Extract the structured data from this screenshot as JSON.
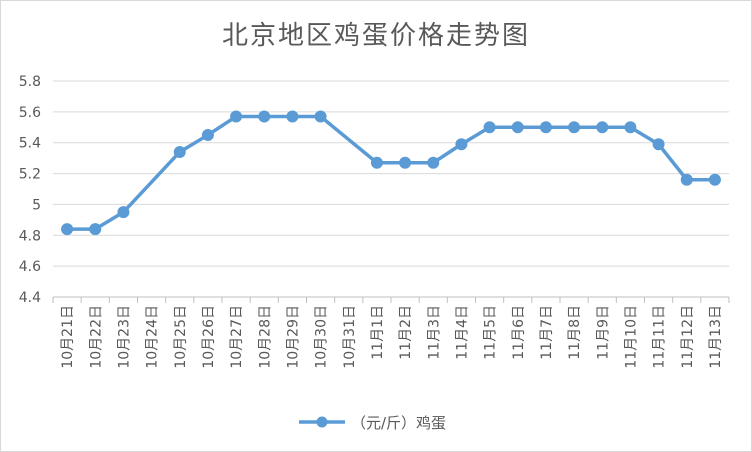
{
  "chart_data": {
    "type": "line",
    "title": "北京地区鸡蛋价格走势图",
    "xlabel": "",
    "ylabel": "",
    "ylim": [
      4.4,
      5.8
    ],
    "yticks": [
      "4.4",
      "4.6",
      "4.8",
      "5",
      "5.2",
      "5.4",
      "5.6",
      "5.8"
    ],
    "categories": [
      "10月21日",
      "10月22日",
      "10月23日",
      "10月24日",
      "10月25日",
      "10月26日",
      "10月27日",
      "10月28日",
      "10月29日",
      "10月30日",
      "10月31日",
      "11月1日",
      "11月2日",
      "11月3日",
      "11月4日",
      "11月5日",
      "11月6日",
      "11月7日",
      "11月8日",
      "11月9日",
      "11月10日",
      "11月11日",
      "11月12日",
      "11月13日"
    ],
    "series": [
      {
        "name": "（元/斤）鸡蛋",
        "color": "#5b9bd5",
        "values": [
          4.84,
          4.84,
          4.95,
          null,
          5.34,
          5.45,
          5.57,
          5.57,
          5.57,
          5.57,
          null,
          5.27,
          5.27,
          5.27,
          5.39,
          5.5,
          5.5,
          5.5,
          5.5,
          5.5,
          5.5,
          5.39,
          5.16,
          5.16
        ]
      }
    ],
    "grid": true,
    "legend": "bottom"
  }
}
